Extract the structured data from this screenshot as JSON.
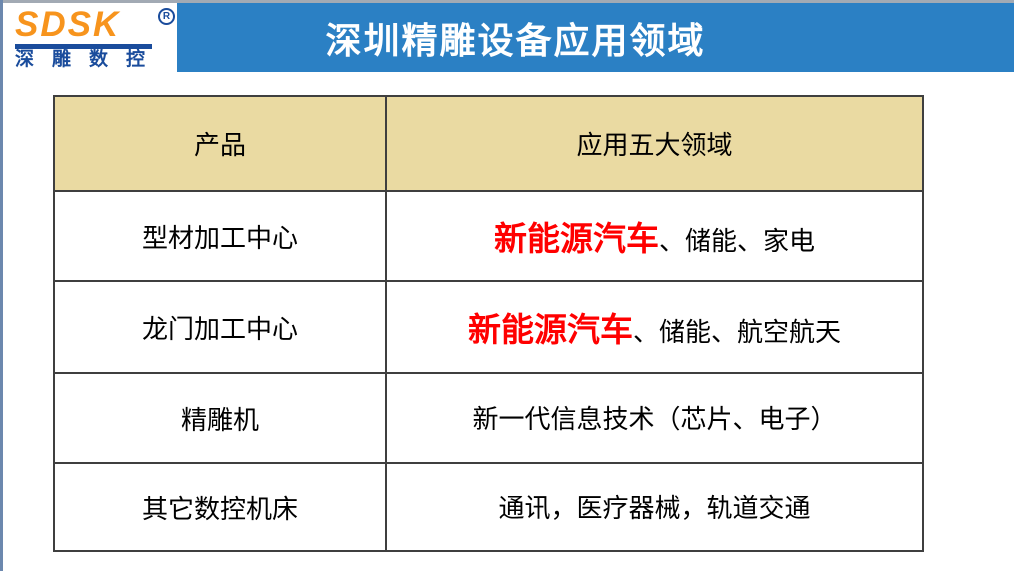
{
  "logo": {
    "brand": "SDSK",
    "registered": "R",
    "subtitle": "深雕数控"
  },
  "header": {
    "title": "深圳精雕设备应用领域"
  },
  "table": {
    "columns": [
      "产品",
      "应用五大领域"
    ],
    "rows": [
      {
        "product": "型材加工中心",
        "highlight": "新能源汽车",
        "rest": "、储能、家电"
      },
      {
        "product": "龙门加工中心",
        "highlight": "新能源汽车",
        "rest": "、储能、航空航天"
      },
      {
        "product": "精雕机",
        "highlight": "",
        "rest": "新一代信息技术（芯片、电子）"
      },
      {
        "product": "其它数控机床",
        "highlight": "",
        "rest": "通讯，医疗器械，轨道交通"
      }
    ]
  },
  "colors": {
    "banner_blue": "#2b80c4",
    "header_tan": "#eadaa2",
    "highlight_red": "#ff0000",
    "logo_orange": "#f7941d",
    "logo_blue": "#1a4c9c",
    "border_dark": "#3f3f3f",
    "left_edge_line": "#6c88ae",
    "top_edge_line": "#a2aab4"
  }
}
